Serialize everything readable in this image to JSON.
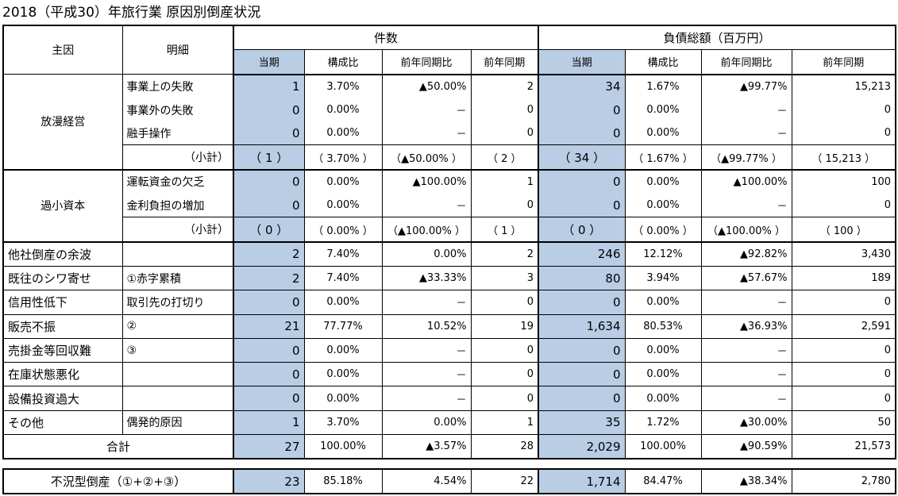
{
  "title": "2018（平成30）年旅行業 原因別倒産状況",
  "header": {
    "main_cause": "主因",
    "detail": "明細",
    "count_group": "件数",
    "debt_group": "負債総額（百万円）",
    "sub": [
      "当期",
      "構成比",
      "前年同期比",
      "前年同期",
      "当期",
      "構成比",
      "前年同期比",
      "前年同期"
    ]
  },
  "groups": [
    {
      "label": "放漫経営",
      "rows": [
        {
          "detail": "事業上の失敗",
          "v": [
            "1",
            "3.70%",
            "▲50.00%",
            "2",
            "34",
            "1.67%",
            "▲99.77%",
            "15,213"
          ]
        },
        {
          "detail": "事業外の失敗",
          "v": [
            "0",
            "0.00%",
            "－",
            "0",
            "0",
            "0.00%",
            "－",
            "0"
          ]
        },
        {
          "detail": "融手操作",
          "v": [
            "0",
            "0.00%",
            "－",
            "0",
            "0",
            "0.00%",
            "－",
            "0"
          ]
        }
      ],
      "subtotal_label": "（小計）",
      "subtotal": [
        "（ 1 ）",
        "（ 3.70% ）",
        "（▲50.00% ）",
        "（ 2 ）",
        "（ 34 ）",
        "（ 1.67% ）",
        "（▲99.77% ）",
        "（ 15,213 ）"
      ]
    },
    {
      "label": "過小資本",
      "rows": [
        {
          "detail": "運転資金の欠乏",
          "v": [
            "0",
            "0.00%",
            "▲100.00%",
            "1",
            "0",
            "0.00%",
            "▲100.00%",
            "100"
          ]
        },
        {
          "detail": "金利負担の増加",
          "v": [
            "0",
            "0.00%",
            "－",
            "0",
            "0",
            "0.00%",
            "－",
            "0"
          ]
        }
      ],
      "subtotal_label": "（小計）",
      "subtotal": [
        "（ 0 ）",
        "（ 0.00% ）",
        "（▲100.00% ）",
        "（ 1 ）",
        "（ 0 ）",
        "（ 0.00% ）",
        "（▲100.00% ）",
        "（ 100 ）"
      ]
    }
  ],
  "rows": [
    {
      "cause": "他社倒産の余波",
      "detail": "",
      "v": [
        "2",
        "7.40%",
        "0.00%",
        "2",
        "246",
        "12.12%",
        "▲92.82%",
        "3,430"
      ]
    },
    {
      "cause": "既往のシワ寄せ",
      "detail": "①赤字累積",
      "v": [
        "2",
        "7.40%",
        "▲33.33%",
        "3",
        "80",
        "3.94%",
        "▲57.67%",
        "189"
      ]
    },
    {
      "cause": "信用性低下",
      "detail": "取引先の打切り",
      "v": [
        "0",
        "0.00%",
        "－",
        "0",
        "0",
        "0.00%",
        "－",
        "0"
      ]
    },
    {
      "cause": "販売不振",
      "detail": "②",
      "v": [
        "21",
        "77.77%",
        "10.52%",
        "19",
        "1,634",
        "80.53%",
        "▲36.93%",
        "2,591"
      ]
    },
    {
      "cause": "売掛金等回収難",
      "detail": "③",
      "v": [
        "0",
        "0.00%",
        "－",
        "0",
        "0",
        "0.00%",
        "－",
        "0"
      ]
    },
    {
      "cause": "在庫状態悪化",
      "detail": "",
      "v": [
        "0",
        "0.00%",
        "－",
        "0",
        "0",
        "0.00%",
        "－",
        "0"
      ]
    },
    {
      "cause": "設備投資過大",
      "detail": "",
      "v": [
        "0",
        "0.00%",
        "－",
        "0",
        "0",
        "0.00%",
        "－",
        "0"
      ]
    },
    {
      "cause": "その他",
      "detail": "偶発的原因",
      "v": [
        "1",
        "3.70%",
        "0.00%",
        "1",
        "35",
        "1.72%",
        "▲30.00%",
        "50"
      ]
    }
  ],
  "total": {
    "label": "合計",
    "v": [
      "27",
      "100.00%",
      "▲3.57%",
      "28",
      "2,029",
      "100.00%",
      "▲90.59%",
      "21,573"
    ]
  },
  "recession": {
    "label": "不況型倒産（①+②+③）",
    "v": [
      "23",
      "85.18%",
      "4.54%",
      "22",
      "1,714",
      "84.47%",
      "▲38.34%",
      "2,780"
    ]
  },
  "colors": {
    "highlight": "#b9cde5"
  }
}
